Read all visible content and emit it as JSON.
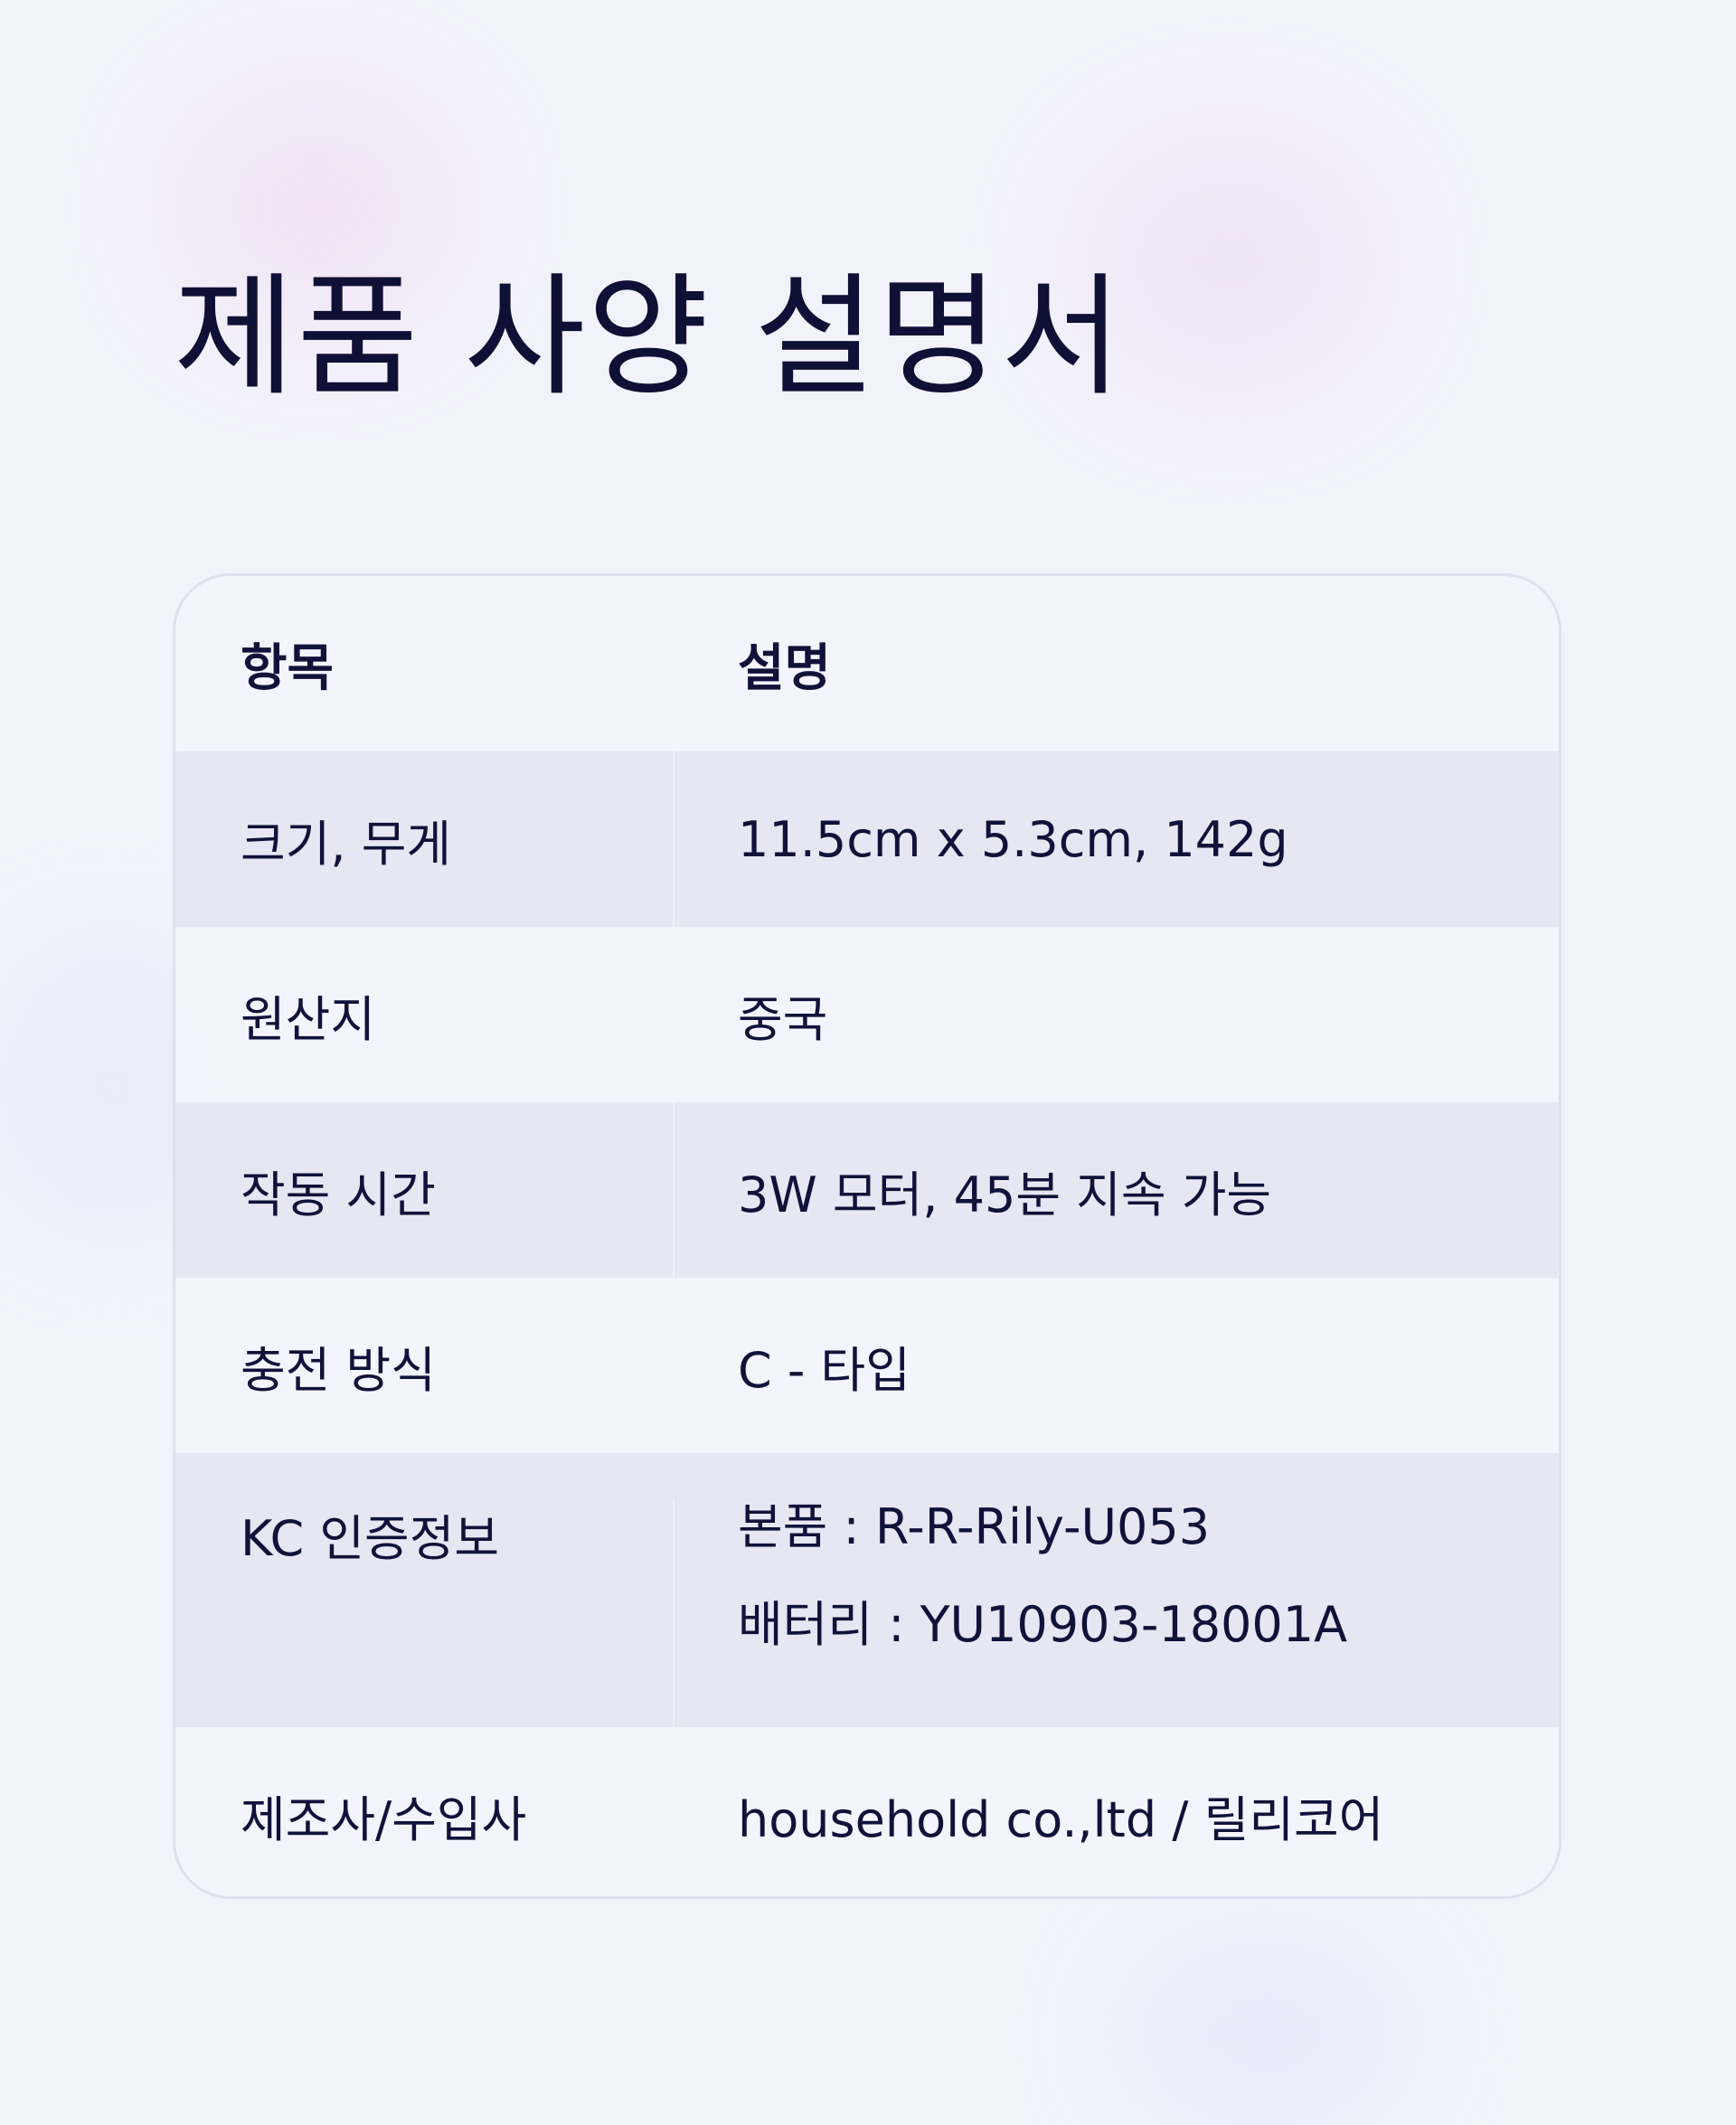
{
  "title": "제품 사양 설명서",
  "table": {
    "headers": [
      "항목",
      "설명"
    ],
    "rows": [
      {
        "label": "크기, 무게",
        "values": [
          "11.5cm x 5.3cm, 142g"
        ]
      },
      {
        "label": "원산지",
        "values": [
          "중국"
        ]
      },
      {
        "label": "작동 시간",
        "values": [
          "3W 모터, 45분 지속 가능"
        ]
      },
      {
        "label": "충전 방식",
        "values": [
          "C - 타입"
        ]
      },
      {
        "label": "KC 인증정보",
        "values": [
          "본품 : R-R-Rily-U053",
          "배터리 : YU10903-18001A"
        ]
      },
      {
        "label": "제조사/수입사",
        "values": [
          "household co.,ltd / 릴리코어"
        ]
      }
    ]
  },
  "colors": {
    "background": "#f2f2fb",
    "text": "#0f1035",
    "stripe": "#e7e7f3",
    "border": "#dfdfee"
  }
}
